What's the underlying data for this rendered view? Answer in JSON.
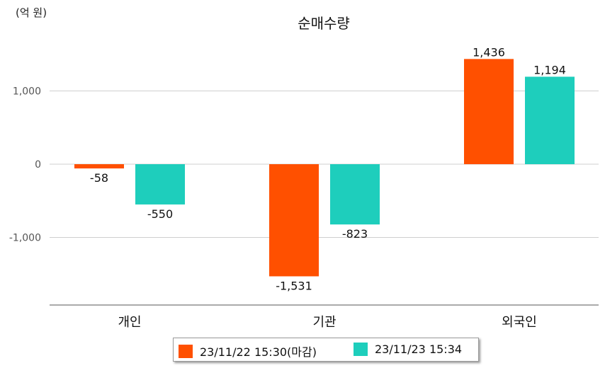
{
  "chart_data": {
    "type": "bar",
    "title": "순매수량",
    "unit_label": "(억 원)",
    "categories": [
      "개인",
      "기관",
      "외국인"
    ],
    "series": [
      {
        "name": "23/11/22 15:30(마감)",
        "values": [
          -58,
          -1531,
          1436
        ],
        "labels": [
          "-58",
          "-1,531",
          "1,436"
        ],
        "color": "#ff5000"
      },
      {
        "name": "23/11/23 15:34",
        "values": [
          -550,
          -823,
          1194
        ],
        "labels": [
          "-550",
          "-823",
          "1,194"
        ],
        "color": "#1ecebc"
      }
    ],
    "yticks": [
      1000,
      0,
      -1000
    ],
    "ytick_labels": [
      "1,000",
      "0",
      "-1,000"
    ],
    "ylim": [
      -1900,
      1600
    ],
    "grid": true,
    "legend_position": "bottom"
  }
}
